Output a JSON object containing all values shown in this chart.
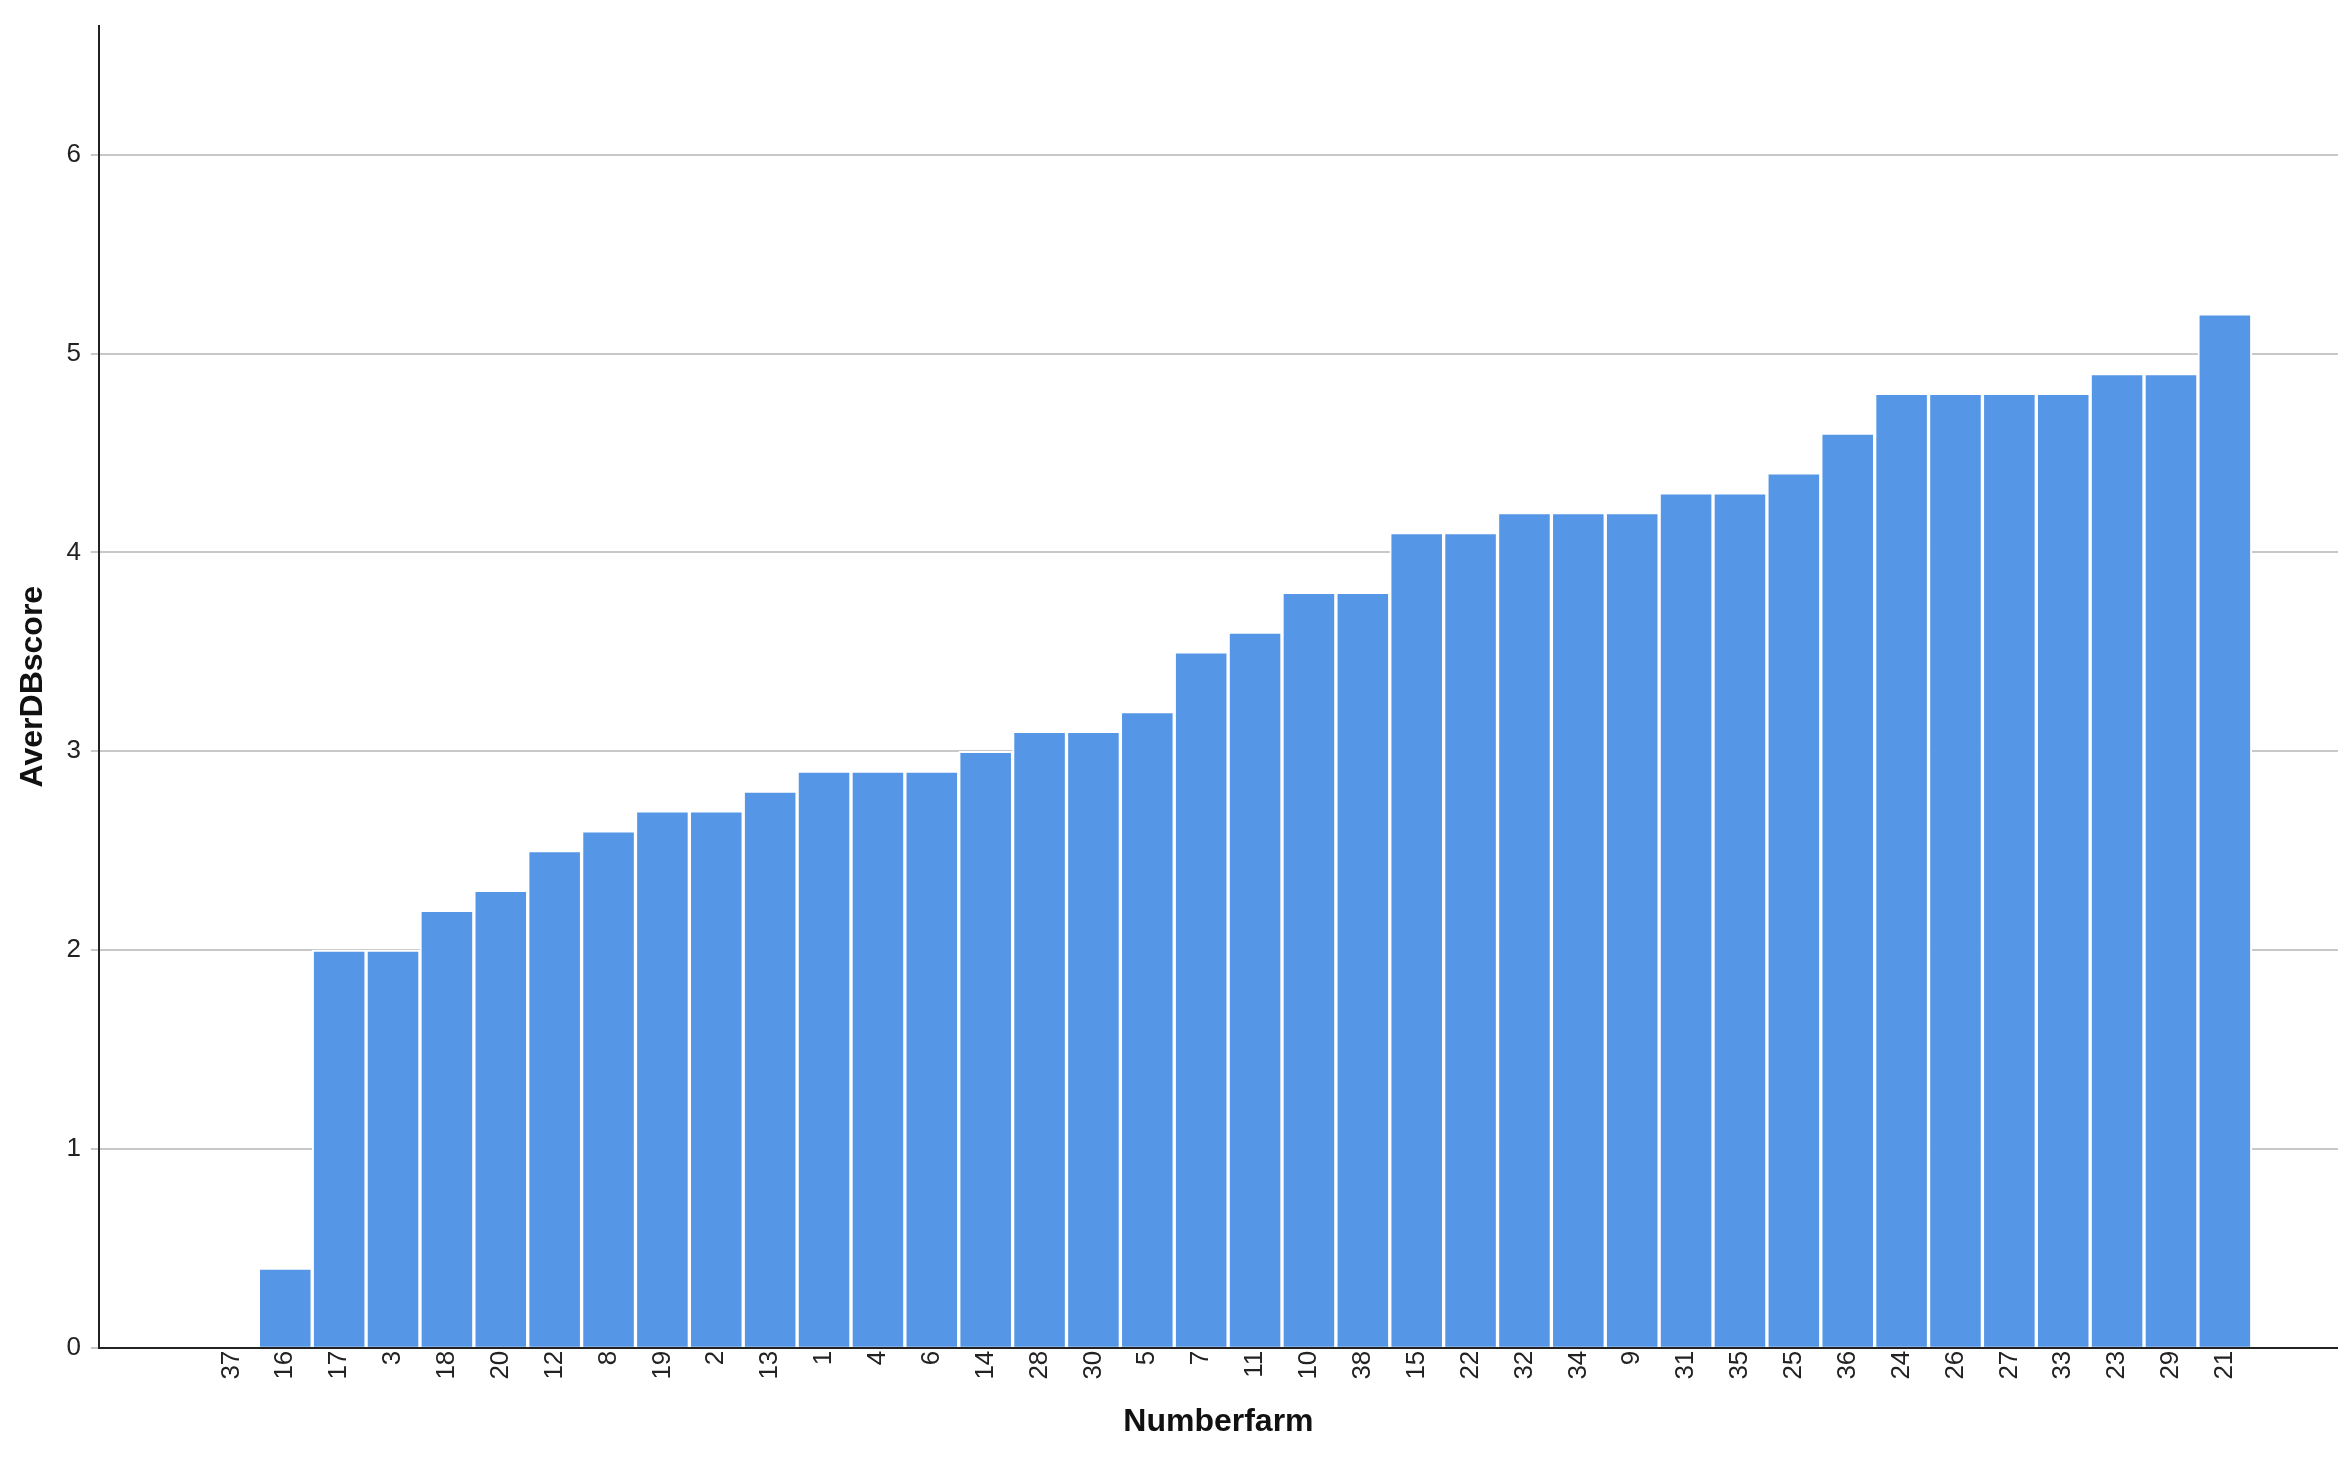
{
  "chart_data": {
    "type": "bar",
    "xlabel": "Numberfarm",
    "ylabel": "AverDBscore",
    "categories": [
      "37",
      "16",
      "17",
      "3",
      "18",
      "20",
      "12",
      "8",
      "19",
      "2",
      "13",
      "1",
      "4",
      "6",
      "14",
      "28",
      "30",
      "5",
      "7",
      "11",
      "10",
      "38",
      "15",
      "22",
      "32",
      "34",
      "9",
      "31",
      "35",
      "25",
      "36",
      "24",
      "26",
      "27",
      "33",
      "23",
      "29",
      "21"
    ],
    "values": [
      0,
      0.4,
      2.0,
      2.0,
      2.2,
      2.3,
      2.5,
      2.6,
      2.7,
      2.7,
      2.8,
      2.9,
      2.9,
      2.9,
      3.0,
      3.1,
      3.1,
      3.2,
      3.5,
      3.6,
      3.8,
      3.8,
      4.1,
      4.1,
      4.2,
      4.2,
      4.2,
      4.3,
      4.3,
      4.4,
      4.6,
      4.8,
      4.8,
      4.8,
      4.8,
      4.9,
      4.9,
      5.2
    ],
    "color": "#5596e6",
    "ylim": [
      0,
      6.65
    ],
    "yticks": [
      0,
      1,
      2,
      3,
      4,
      5,
      6
    ],
    "grid": "y",
    "legend": false
  }
}
